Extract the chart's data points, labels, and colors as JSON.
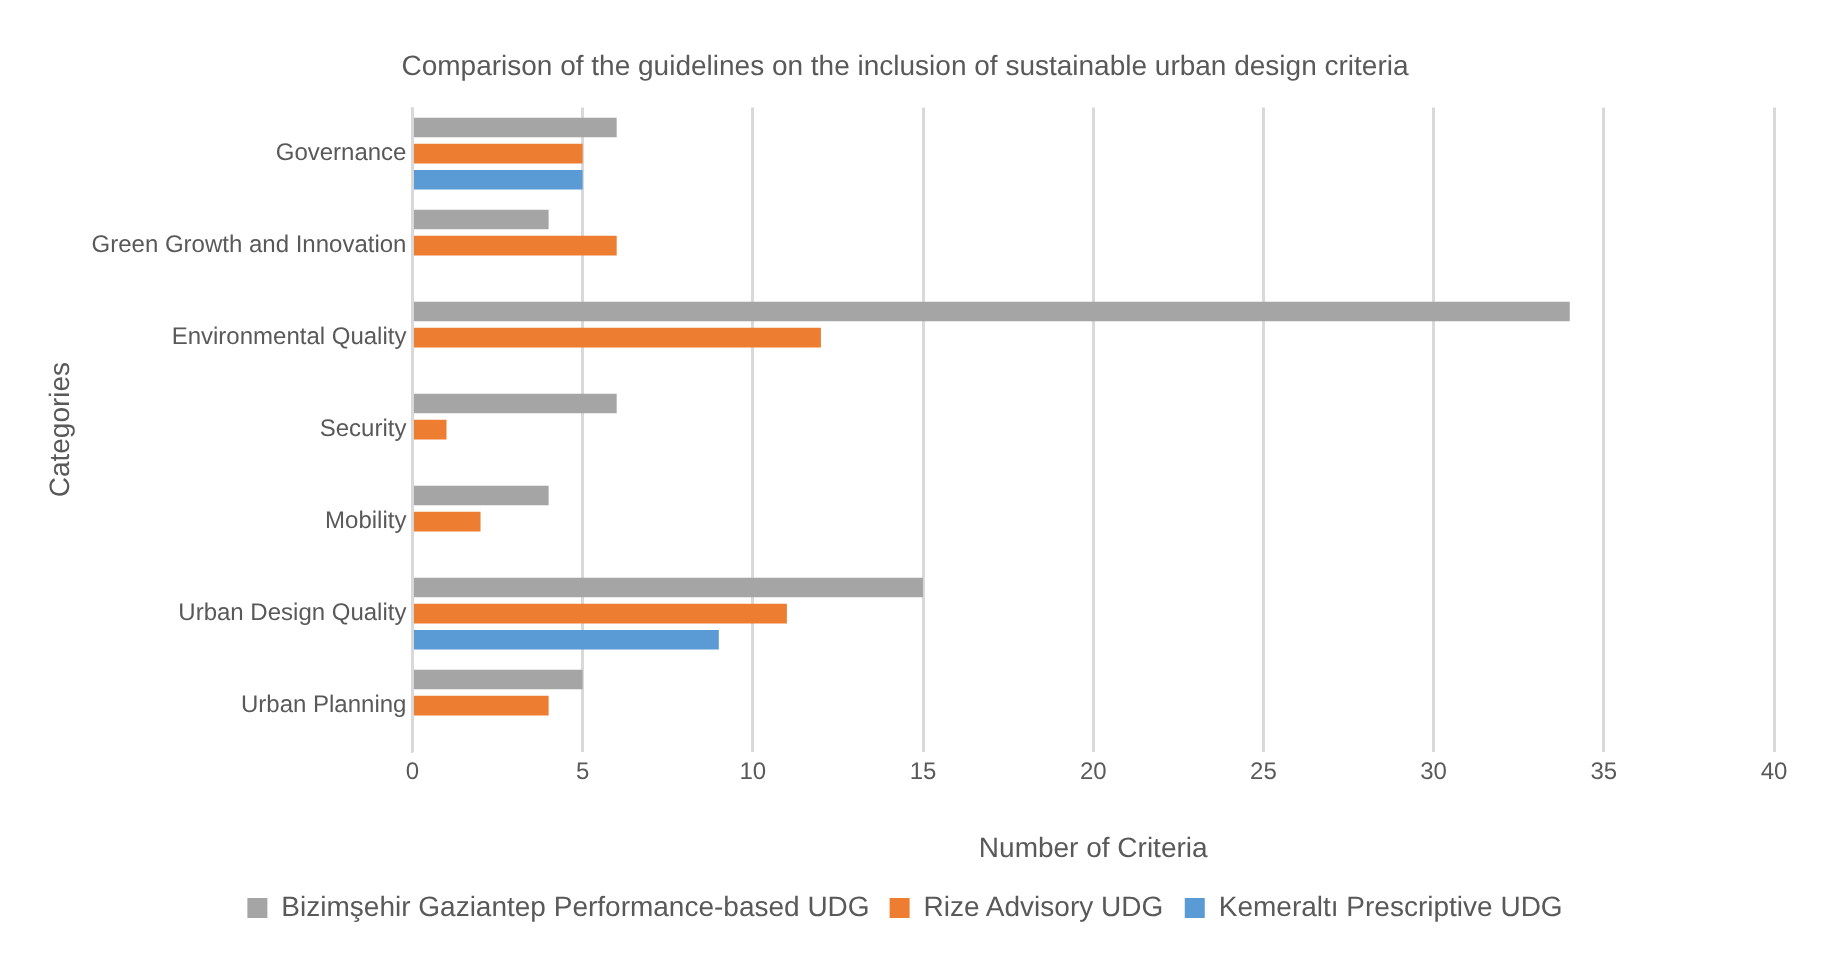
{
  "chart_data": {
    "type": "bar",
    "orientation": "horizontal",
    "title": "Comparison of the guidelines on the inclusion of sustainable urban design criteria",
    "xlabel": "Number of Criteria",
    "ylabel": "Categories",
    "categories": [
      "Governance",
      "Green Growth and Innovation",
      "Environmental Quality",
      "Security",
      "Mobility",
      "Urban Design Quality",
      "Urban Planning"
    ],
    "series": [
      {
        "name": "Bizimşehir Gaziantep Performance-based UDG",
        "color": "#a5a5a5",
        "values": [
          6,
          4,
          34,
          6,
          4,
          15,
          5
        ]
      },
      {
        "name": "Rize Advisory UDG",
        "color": "#ed7d31",
        "values": [
          5,
          6,
          12,
          1,
          2,
          11,
          4
        ]
      },
      {
        "name": "Kemeraltı Prescriptive UDG",
        "color": "#5b9bd5",
        "values": [
          5,
          0,
          0,
          0,
          0,
          9,
          0
        ]
      }
    ],
    "xlim": [
      0,
      40
    ],
    "xticks": [
      0,
      5,
      10,
      15,
      20,
      25,
      30,
      35,
      40
    ],
    "grid": "x",
    "legend": "bottom"
  }
}
